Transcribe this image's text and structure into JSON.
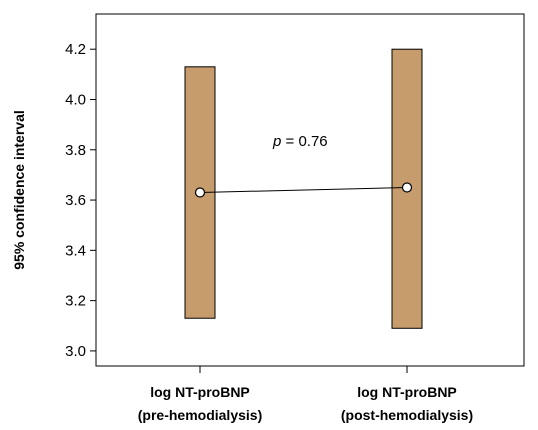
{
  "chart_data": {
    "type": "interval",
    "ylabel": "95% confidence interval",
    "ylim": [
      2.94,
      4.34
    ],
    "yticks": [
      3.0,
      3.2,
      3.4,
      3.6,
      3.8,
      4.0,
      4.2
    ],
    "ytick_labels": [
      "3.0",
      "3.2",
      "3.4",
      "3.6",
      "3.8",
      "4.0",
      "4.2"
    ],
    "categories": [
      {
        "line1": "log NT-proBNP",
        "line2": "(pre-hemodialysis)"
      },
      {
        "line1": "log NT-proBNP",
        "line2": "(post-hemodialysis)"
      }
    ],
    "intervals": [
      {
        "lower": 3.13,
        "upper": 4.13,
        "mean": 3.63
      },
      {
        "lower": 3.09,
        "upper": 4.2,
        "mean": 3.65
      }
    ],
    "bar_color": "#c69c6d",
    "annotation": {
      "p": "p",
      "rest": " = 0.76"
    },
    "grid": false
  }
}
